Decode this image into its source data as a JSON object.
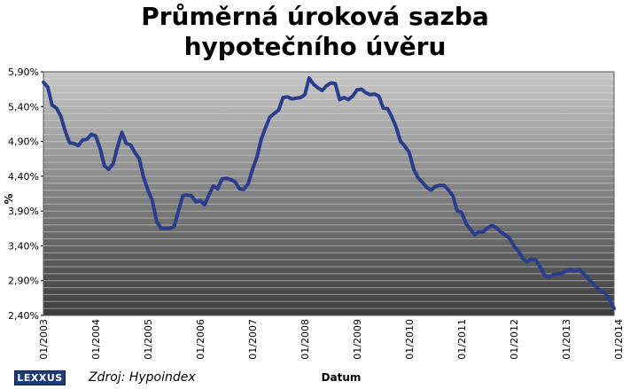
{
  "title_line1": "Průměrná úroková sazba",
  "title_line2": "hypotečního úvěru",
  "logo_text": "LEXXUS",
  "source_text": "Zdroj:  Hypoindex",
  "colors": {
    "line": "#2b3d8c",
    "plot_top": "#c8c8c8",
    "plot_bottom": "#3c3c3c"
  },
  "chart_data": {
    "type": "line",
    "xlabel": "Datum",
    "ylabel": "%",
    "ylim": [
      2.4,
      5.9
    ],
    "y_ticks": [
      "2,40%",
      "2,90%",
      "3,40%",
      "3,90%",
      "4,40%",
      "4,90%",
      "5,40%",
      "5,90%"
    ],
    "x_tick_labels": [
      "01/2003",
      "01/2004",
      "01/2005",
      "01/2006",
      "01/2007",
      "01/2008",
      "01/2009",
      "01/2010",
      "01/2011",
      "01/2012",
      "01/2013",
      "01/2014"
    ],
    "grid": true,
    "series": [
      {
        "values": [
          5.75,
          5.68,
          5.42,
          5.38,
          5.26,
          5.05,
          4.88,
          4.87,
          4.84,
          4.92,
          4.93,
          5.0,
          4.98,
          4.8,
          4.55,
          4.5,
          4.58,
          4.82,
          5.03,
          4.87,
          4.85,
          4.74,
          4.65,
          4.38,
          4.2,
          4.05,
          3.75,
          3.65,
          3.65,
          3.65,
          3.68,
          3.9,
          4.12,
          4.13,
          4.12,
          4.03,
          4.05,
          3.99,
          4.13,
          4.26,
          4.22,
          4.36,
          4.37,
          4.35,
          4.32,
          4.22,
          4.21,
          4.29,
          4.5,
          4.67,
          4.93,
          5.1,
          5.25,
          5.3,
          5.35,
          5.53,
          5.54,
          5.51,
          5.52,
          5.53,
          5.57,
          5.81,
          5.72,
          5.67,
          5.63,
          5.7,
          5.74,
          5.73,
          5.5,
          5.53,
          5.5,
          5.55,
          5.64,
          5.65,
          5.6,
          5.57,
          5.58,
          5.55,
          5.38,
          5.37,
          5.25,
          5.1,
          4.9,
          4.83,
          4.74,
          4.5,
          4.38,
          4.31,
          4.24,
          4.2,
          4.25,
          4.27,
          4.27,
          4.2,
          4.12,
          3.9,
          3.88,
          3.72,
          3.64,
          3.56,
          3.6,
          3.6,
          3.66,
          3.69,
          3.66,
          3.6,
          3.56,
          3.51,
          3.4,
          3.33,
          3.22,
          3.17,
          3.21,
          3.2,
          3.1,
          2.98,
          2.95,
          2.98,
          3.0,
          3.0,
          3.04,
          3.06,
          3.04,
          3.06,
          3.0,
          2.93,
          2.87,
          2.8,
          2.75,
          2.72,
          2.62,
          2.5
        ]
      }
    ]
  }
}
